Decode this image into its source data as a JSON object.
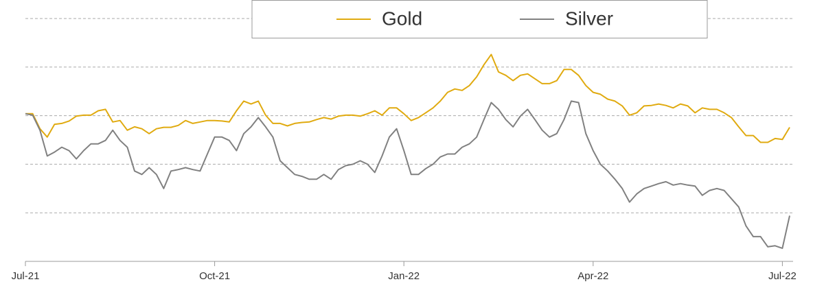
{
  "chart_data": {
    "type": "line",
    "categories": [
      "Jul-21",
      null,
      null,
      null,
      null,
      null,
      null,
      null,
      null,
      null,
      null,
      null,
      null,
      null,
      null,
      null,
      null,
      null,
      null,
      null,
      null,
      null,
      null,
      null,
      null,
      null,
      "Oct-21",
      null,
      null,
      null,
      null,
      null,
      null,
      null,
      null,
      null,
      null,
      null,
      null,
      null,
      null,
      null,
      null,
      null,
      null,
      null,
      null,
      null,
      null,
      null,
      null,
      null,
      "Jan-22",
      null,
      null,
      null,
      null,
      null,
      null,
      null,
      null,
      null,
      null,
      null,
      null,
      null,
      null,
      null,
      null,
      null,
      null,
      null,
      null,
      null,
      null,
      null,
      null,
      null,
      "Apr-22",
      null,
      null,
      null,
      null,
      null,
      null,
      null,
      null,
      null,
      null,
      null,
      null,
      null,
      null,
      null,
      null,
      null,
      null,
      null,
      null,
      null,
      null,
      null,
      null,
      null,
      "Jul-22",
      null
    ],
    "series": [
      {
        "name": "Gold",
        "color": "#e0aa0f",
        "values": [
          100.4,
          100.4,
          97.3,
          95.6,
          98.2,
          98.4,
          98.9,
          99.9,
          100.1,
          100.1,
          101,
          101.3,
          98.7,
          99,
          97,
          97.7,
          97.3,
          96.3,
          97.3,
          97.6,
          97.6,
          98,
          99,
          98.4,
          98.7,
          99,
          99,
          98.9,
          98.7,
          101,
          103,
          102.4,
          103,
          100.1,
          98.4,
          98.4,
          97.9,
          98.4,
          98.6,
          98.7,
          99.2,
          99.6,
          99.3,
          99.9,
          100.1,
          100.1,
          99.9,
          100.4,
          101,
          100.1,
          101.6,
          101.6,
          100.4,
          99,
          99.6,
          100.6,
          101.6,
          103,
          104.8,
          105.5,
          105.2,
          106.2,
          108,
          110.5,
          112.6,
          109,
          108.3,
          107.2,
          108.3,
          108.6,
          107.6,
          106.6,
          106.6,
          107.2,
          109.5,
          109.5,
          108.3,
          106.2,
          104.8,
          104.4,
          103.4,
          103,
          102,
          100.1,
          100.6,
          102,
          102.1,
          102.4,
          102.1,
          101.6,
          102.4,
          102,
          100.6,
          101.6,
          101.3,
          101.3,
          100.6,
          99.6,
          97.7,
          95.9,
          95.9,
          94.5,
          94.5,
          95.3,
          95.1,
          97.6
        ]
      },
      {
        "name": "Silver",
        "color": "#808080",
        "values": [
          100.4,
          100.1,
          97,
          91.7,
          92.5,
          93.5,
          92.8,
          91.1,
          92.8,
          94.2,
          94.2,
          94.9,
          97,
          94.9,
          93.5,
          88.6,
          87.9,
          89.3,
          87.9,
          85,
          88.6,
          88.9,
          89.3,
          88.9,
          88.6,
          92.1,
          95.6,
          95.6,
          94.9,
          92.8,
          96.3,
          97.7,
          99.6,
          97.7,
          95.6,
          90.7,
          89.3,
          87.9,
          87.5,
          86.9,
          86.9,
          87.9,
          86.9,
          88.9,
          89.7,
          90,
          90.7,
          90,
          88.3,
          91.7,
          95.6,
          97.3,
          92.8,
          87.9,
          87.9,
          89.1,
          90,
          91.5,
          92.1,
          92.1,
          93.5,
          94.2,
          95.6,
          99.2,
          102.7,
          101.3,
          99.2,
          97.7,
          99.9,
          101.3,
          99.2,
          97,
          95.6,
          96.3,
          99.2,
          103,
          102.7,
          96.3,
          92.8,
          90,
          88.6,
          86.9,
          85,
          82.2,
          83.9,
          85,
          85.5,
          86,
          86.4,
          85.7,
          86,
          85.7,
          85.5,
          83.6,
          84.6,
          85,
          84.6,
          82.9,
          81.2,
          77.3,
          75.1,
          75.1,
          73,
          73.2,
          72.7,
          79.4
        ]
      }
    ],
    "ylim": [
      70,
      120
    ],
    "yticks": [
      70,
      80,
      90,
      100,
      110,
      120
    ],
    "grid": true,
    "legend": "top"
  }
}
